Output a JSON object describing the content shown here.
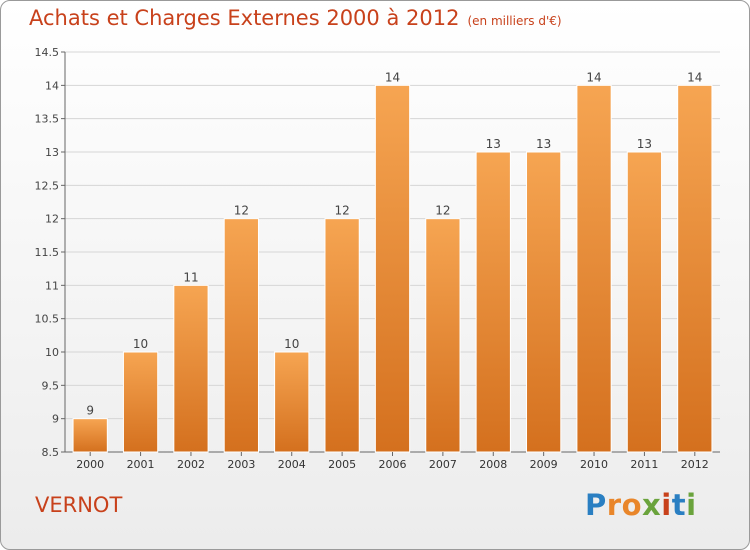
{
  "header": {
    "title": "Achats et Charges Externes 2000 à 2012",
    "subtitle": "(en milliers d'€)"
  },
  "footer": {
    "commune": "VERNOT",
    "logo_text": "Proxiti"
  },
  "colors": {
    "title": "#c8411b",
    "bar_top": "#f6a552",
    "bar_bottom": "#d4701e",
    "grid": "#d6d6d6"
  },
  "chart_data": {
    "type": "bar",
    "title": "Achats et Charges Externes 2000 à 2012",
    "subtitle": "(en milliers d'€)",
    "xlabel": "",
    "ylabel": "",
    "categories": [
      "2000",
      "2001",
      "2002",
      "2003",
      "2004",
      "2005",
      "2006",
      "2007",
      "2008",
      "2009",
      "2010",
      "2011",
      "2012"
    ],
    "values": [
      9,
      10,
      11,
      12,
      10,
      12,
      14,
      12,
      13,
      13,
      14,
      13,
      14
    ],
    "data_labels": [
      "9",
      "10",
      "11",
      "12",
      "10",
      "12",
      "14",
      "12",
      "13",
      "13",
      "14",
      "13",
      "14"
    ],
    "ylim": [
      8.5,
      14.5
    ],
    "yticks": [
      8.5,
      9,
      9.5,
      10,
      10.5,
      11,
      11.5,
      12,
      12.5,
      13,
      13.5,
      14,
      14.5
    ],
    "ytick_labels": [
      "8.5",
      "9",
      "9.5",
      "10",
      "10.5",
      "11",
      "11.5",
      "12",
      "12.5",
      "13",
      "13.5",
      "14",
      "14.5"
    ],
    "grid": true,
    "legend": "none"
  }
}
